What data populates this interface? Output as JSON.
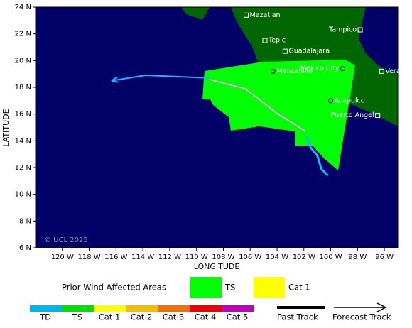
{
  "map": {
    "xlabel": "LONGITUDE",
    "ylabel": "LATITUDE",
    "copyright": "© UCL 2025",
    "xlim": [
      -122,
      -95
    ],
    "ylim": [
      6,
      24
    ],
    "xticks": [
      {
        "value": -120,
        "label": "120 W"
      },
      {
        "value": -118,
        "label": "118 W"
      },
      {
        "value": -116,
        "label": "116 W"
      },
      {
        "value": -114,
        "label": "114 W"
      },
      {
        "value": -112,
        "label": "112 W"
      },
      {
        "value": -110,
        "label": "110 W"
      },
      {
        "value": -108,
        "label": "108 W"
      },
      {
        "value": -106,
        "label": "106 W"
      },
      {
        "value": -104,
        "label": "104 W"
      },
      {
        "value": -102,
        "label": "102 W"
      },
      {
        "value": -100,
        "label": "100 W"
      },
      {
        "value": -98,
        "label": "98 W"
      },
      {
        "value": -96,
        "label": "96 W"
      }
    ],
    "yticks": [
      {
        "value": 6,
        "label": "6 N"
      },
      {
        "value": 8,
        "label": "8 N"
      },
      {
        "value": 10,
        "label": "10 N"
      },
      {
        "value": 12,
        "label": "12 N"
      },
      {
        "value": 14,
        "label": "14 N"
      },
      {
        "value": 16,
        "label": "16 N"
      },
      {
        "value": 18,
        "label": "18 N"
      },
      {
        "value": 20,
        "label": "20 N"
      },
      {
        "value": 22,
        "label": "22 N"
      },
      {
        "value": 24,
        "label": "24 N"
      }
    ],
    "cities": [
      {
        "name": "Mazatlan",
        "lon": -106.3,
        "lat": 23.4,
        "marker": "square"
      },
      {
        "name": "Tepic",
        "lon": -104.9,
        "lat": 21.5,
        "marker": "square"
      },
      {
        "name": "Guadalajara",
        "lon": -103.4,
        "lat": 20.7,
        "marker": "square"
      },
      {
        "name": "Tampico",
        "lon": -97.8,
        "lat": 22.3,
        "marker": "square"
      },
      {
        "name": "Manzanillo",
        "lon": -104.3,
        "lat": 19.2,
        "marker": "circle"
      },
      {
        "name": "Mexico City",
        "lon": -99.1,
        "lat": 19.4,
        "marker": "circle"
      },
      {
        "name": "Veracruz",
        "lon": -96.2,
        "lat": 19.2,
        "marker": "square"
      },
      {
        "name": "Acapulco",
        "lon": -100.0,
        "lat": 17.0,
        "marker": "circle"
      },
      {
        "name": "Puerto Angel",
        "lon": -96.5,
        "lat": 15.9,
        "marker": "square"
      }
    ],
    "tracks": {
      "past": {
        "color": "#1ab4ff",
        "lon": [
          -101.8,
          -101.5,
          -101.0,
          -100.7,
          -100.2
        ],
        "lat": [
          14.4,
          13.5,
          12.9,
          11.9,
          11.4
        ]
      },
      "forecast": {
        "color": "#1ab4ff",
        "lon": [
          -109.0,
          -113.8,
          -116.3
        ],
        "lat": [
          18.7,
          18.9,
          18.5
        ]
      }
    },
    "legend": {
      "title": "Prior Wind Affected Areas",
      "areas": [
        {
          "name": "TS",
          "color": "#00ff00"
        },
        {
          "name": "Cat 1",
          "color": "#ffff00"
        }
      ],
      "scale": [
        {
          "name": "TD",
          "color": "#00b4f0"
        },
        {
          "name": "TS",
          "color": "#00e000"
        },
        {
          "name": "Cat 1",
          "color": "#ffff00"
        },
        {
          "name": "Cat 2",
          "color": "#f0c000"
        },
        {
          "name": "Cat 3",
          "color": "#f07000"
        },
        {
          "name": "Cat 4",
          "color": "#f00000"
        },
        {
          "name": "Cat 5",
          "color": "#c000c0"
        }
      ],
      "lines": [
        "Past Track",
        "Forecast Track"
      ]
    }
  }
}
